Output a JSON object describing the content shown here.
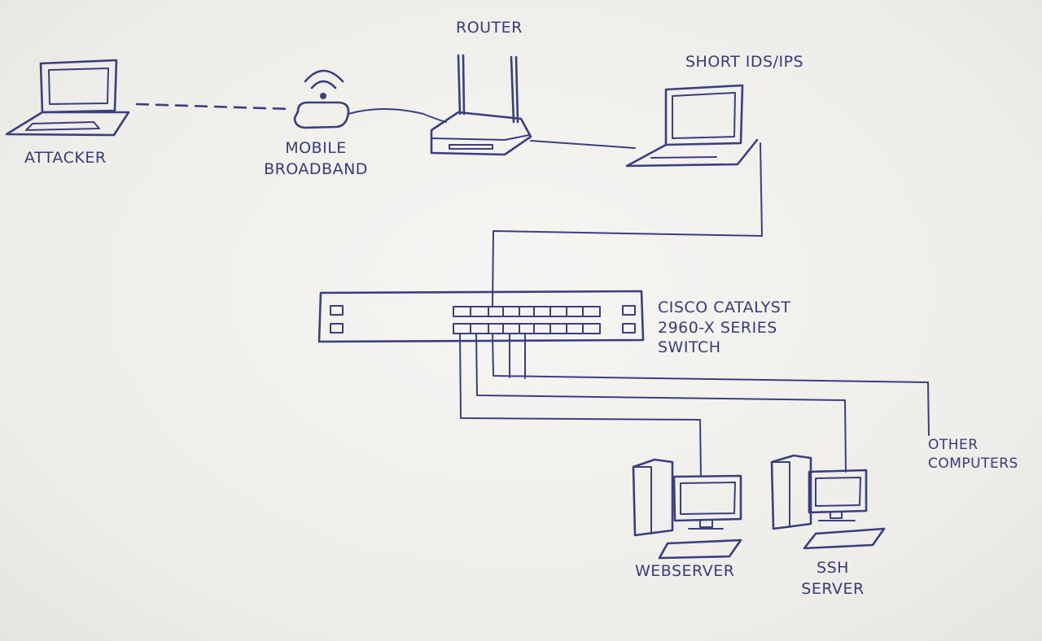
{
  "diagram": {
    "nodes": {
      "attacker": {
        "label": "ATTACKER",
        "icon": "laptop-icon"
      },
      "mobile_broadband": {
        "line1": "MOBILE",
        "line2": "BROADBAND",
        "icon": "mobile-broadband-icon"
      },
      "router": {
        "label": "ROUTER",
        "icon": "router-icon"
      },
      "snort": {
        "label": "SHORT IDS/IPS",
        "icon": "laptop-icon"
      },
      "switch": {
        "line1": "CISCO CATALYST",
        "line2": "2960-X SERIES",
        "line3": "SWITCH",
        "icon": "switch-icon"
      },
      "webserver": {
        "label": "WEBSERVER",
        "icon": "desktop-computer-icon"
      },
      "ssh_server": {
        "line1": "SSH",
        "line2": "SERVER",
        "icon": "desktop-computer-icon"
      },
      "other_computers": {
        "line1": "OTHER",
        "line2": "COMPUTERS"
      }
    },
    "ink_color": "#3a3f80",
    "paper_color": "#f1f0ee"
  }
}
